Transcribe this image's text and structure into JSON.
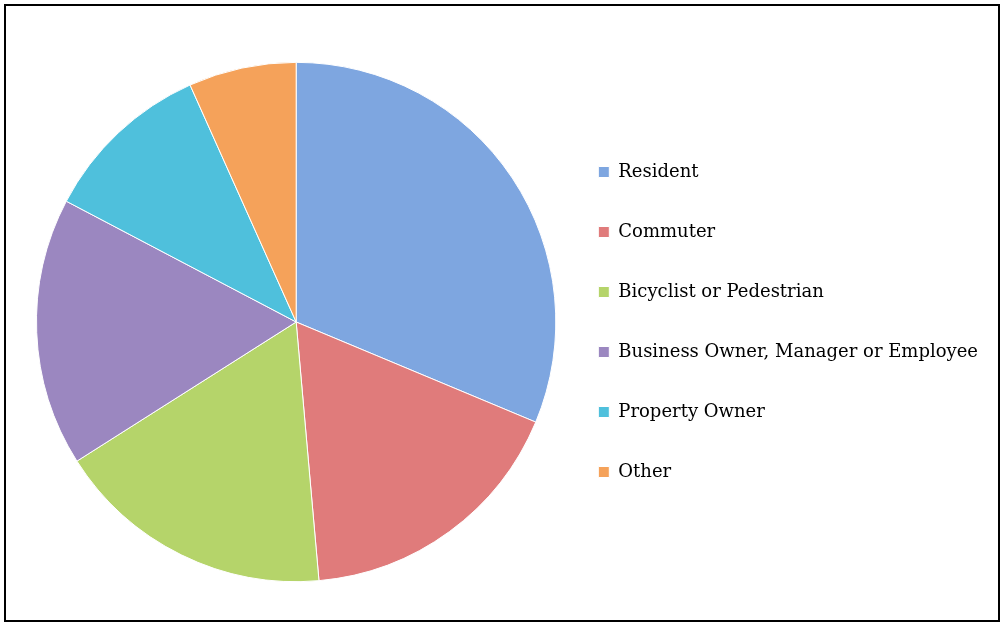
{
  "chart_data": {
    "type": "pie",
    "categories": [
      "Resident",
      "Commuter",
      "Bicyclist or Pedestrian",
      "Business Owner, Manager or Employee",
      "Property Owner",
      "Other"
    ],
    "values": [
      31.3,
      17.3,
      17.4,
      16.7,
      10.6,
      6.7
    ],
    "colors": [
      "#7ea6e0",
      "#e07b7b",
      "#b5d46a",
      "#9b87c0",
      "#4fc0dc",
      "#f5a25a"
    ],
    "legend": "right"
  }
}
